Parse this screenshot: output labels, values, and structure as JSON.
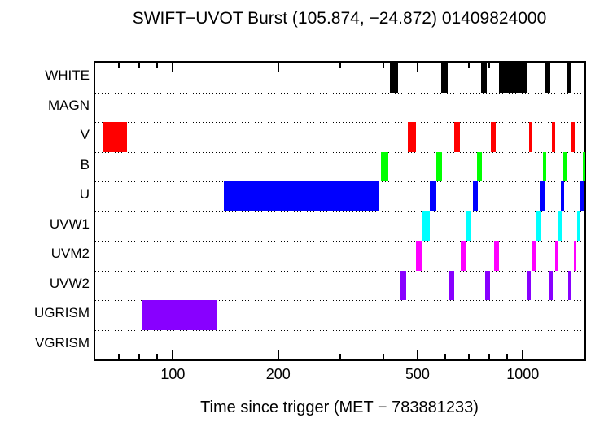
{
  "title": "SWIFT−UVOT Burst (105.874, −24.872) 01409824000",
  "xlabel": "Time since trigger (MET − 783881233)",
  "chart_data": {
    "type": "bar",
    "subtype": "exposure-timeline",
    "title": "SWIFT−UVOT Burst (105.874, −24.872) 01409824000",
    "xlabel": "Time since trigger (MET − 783881233)",
    "x_scale": "log",
    "x_range": [
      60,
      1500
    ],
    "grid": "dotted horizontal separators between rows",
    "x_major_ticks": [
      100,
      200,
      500,
      1000
    ],
    "x_minor_ticks": [
      70,
      80,
      90,
      200,
      300,
      400,
      500,
      600,
      700,
      800,
      900
    ],
    "x_tick_labels": [
      {
        "value": 100,
        "label": "100"
      },
      {
        "value": 200,
        "label": "200"
      },
      {
        "value": 500,
        "label": "500"
      },
      {
        "value": 1000,
        "label": "1000"
      }
    ],
    "rows": [
      {
        "label": "WHITE",
        "color": "#000000",
        "intervals": [
          [
            418,
            440
          ],
          [
            584,
            610
          ],
          [
            760,
            788
          ],
          [
            857,
            1027
          ],
          [
            1161,
            1199
          ],
          [
            1332,
            1373
          ]
        ]
      },
      {
        "label": "MAGN",
        "color": "#000000",
        "intervals": []
      },
      {
        "label": "V",
        "color": "#ff0000",
        "intervals": [
          [
            63,
            74
          ],
          [
            468,
            494
          ],
          [
            636,
            661
          ],
          [
            810,
            837
          ],
          [
            1040,
            1066
          ],
          [
            1212,
            1240
          ],
          [
            1374,
            1406
          ]
        ]
      },
      {
        "label": "B",
        "color": "#00ff00",
        "intervals": [
          [
            394,
            412
          ],
          [
            565,
            588
          ],
          [
            738,
            764
          ],
          [
            1142,
            1169
          ],
          [
            1307,
            1336
          ],
          [
            1482,
            1500
          ]
        ]
      },
      {
        "label": "U",
        "color": "#0000ff",
        "intervals": [
          [
            140,
            390
          ],
          [
            541,
            567
          ],
          [
            722,
            743
          ],
          [
            1117,
            1151
          ],
          [
            1285,
            1315
          ],
          [
            1457,
            1500
          ]
        ]
      },
      {
        "label": "UVW1",
        "color": "#00ffff",
        "intervals": [
          [
            517,
            541
          ],
          [
            687,
            707
          ],
          [
            1094,
            1128
          ],
          [
            1267,
            1297
          ],
          [
            1430,
            1463
          ]
        ]
      },
      {
        "label": "UVM2",
        "color": "#ff00ff",
        "intervals": [
          [
            495,
            513
          ],
          [
            665,
            687
          ],
          [
            828,
            856
          ],
          [
            1063,
            1094
          ],
          [
            1234,
            1260
          ],
          [
            1397,
            1423
          ]
        ]
      },
      {
        "label": "UVW2",
        "color": "#8800ff",
        "intervals": [
          [
            445,
            464
          ],
          [
            614,
            637
          ],
          [
            780,
            806
          ],
          [
            1027,
            1053
          ],
          [
            1187,
            1215
          ],
          [
            1345,
            1379
          ]
        ]
      },
      {
        "label": "UGRISM",
        "color": "#8800ff",
        "intervals": [
          [
            82,
            133
          ]
        ]
      },
      {
        "label": "VGRISM",
        "color": "#000000",
        "intervals": []
      }
    ]
  }
}
